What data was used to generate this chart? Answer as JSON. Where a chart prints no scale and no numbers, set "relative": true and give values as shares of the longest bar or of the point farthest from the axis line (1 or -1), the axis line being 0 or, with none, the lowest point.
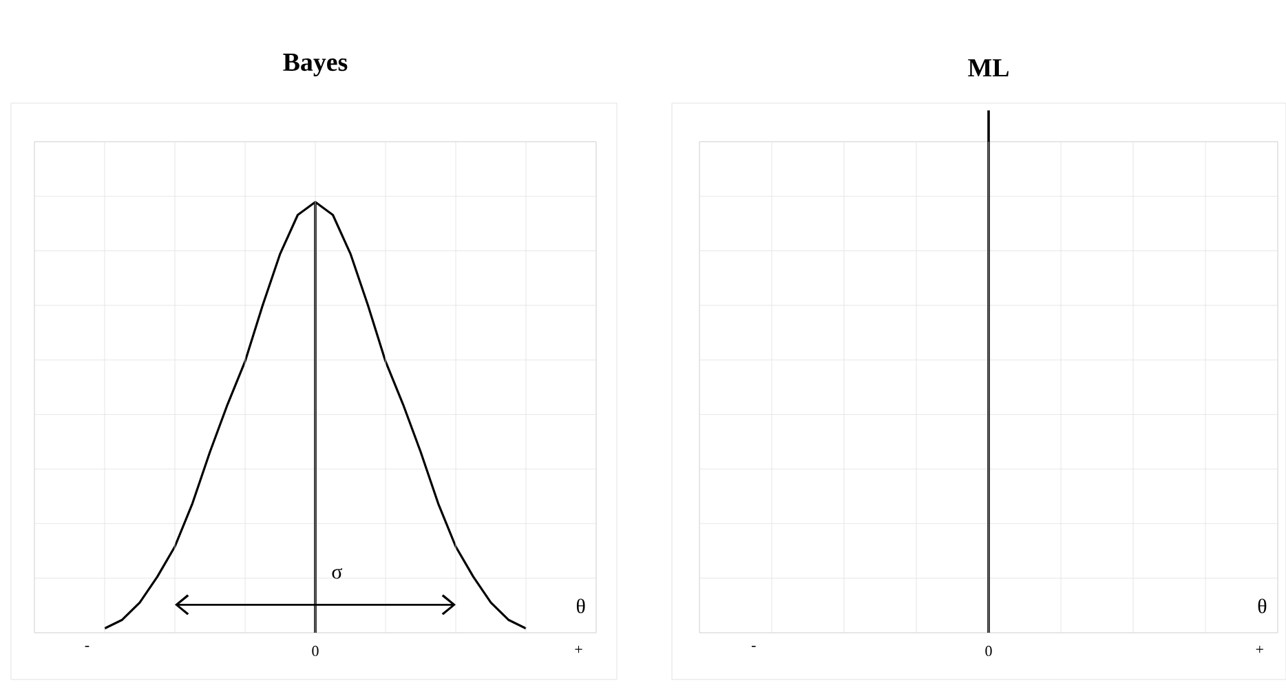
{
  "chart_data": [
    {
      "type": "line",
      "title": "Bayes",
      "relative": true,
      "grid": true,
      "marker": "none",
      "line_style": "solid",
      "categories": [
        "-",
        null,
        null,
        null,
        null,
        null,
        null,
        null,
        null,
        null,
        null,
        null,
        null,
        "0",
        null,
        null,
        null,
        null,
        null,
        null,
        null,
        null,
        null,
        null,
        null,
        null,
        null,
        null,
        "+"
      ],
      "series": [
        {
          "type": "line",
          "color": "#000000",
          "values": [
            null,
            0.01,
            0.03,
            0.07,
            0.13,
            0.2,
            0.3,
            0.42,
            0.53,
            0.63,
            0.76,
            0.88,
            0.97,
            1,
            0.97,
            0.88,
            0.76,
            0.63,
            0.53,
            0.42,
            0.3,
            0.2,
            0.13,
            0.07,
            0.03,
            0.01,
            null,
            null,
            null
          ]
        },
        {
          "type": "bar",
          "color": "#000000",
          "values": [
            null,
            null,
            null,
            null,
            null,
            null,
            null,
            null,
            null,
            null,
            null,
            null,
            null,
            1,
            null,
            null,
            null,
            null,
            null,
            null,
            null,
            null,
            null,
            null,
            null,
            null,
            null,
            null,
            null
          ]
        }
      ],
      "annotations": [
        "σ",
        "θ"
      ]
    },
    {
      "type": "bar",
      "title": "ML",
      "relative": true,
      "grid": true,
      "color": "#000000",
      "categories": [
        "-",
        null,
        null,
        null,
        null,
        null,
        null,
        null,
        null,
        null,
        null,
        null,
        null,
        "0",
        null,
        null,
        null,
        null,
        null,
        null,
        null,
        null,
        null,
        null,
        null,
        null,
        null,
        null,
        "+"
      ],
      "values": [
        null,
        null,
        null,
        null,
        null,
        null,
        null,
        null,
        null,
        null,
        null,
        null,
        null,
        1,
        null,
        null,
        null,
        null,
        null,
        null,
        null,
        null,
        null,
        null,
        null,
        null,
        null,
        null,
        null
      ],
      "annotations": [
        "θ"
      ]
    }
  ]
}
